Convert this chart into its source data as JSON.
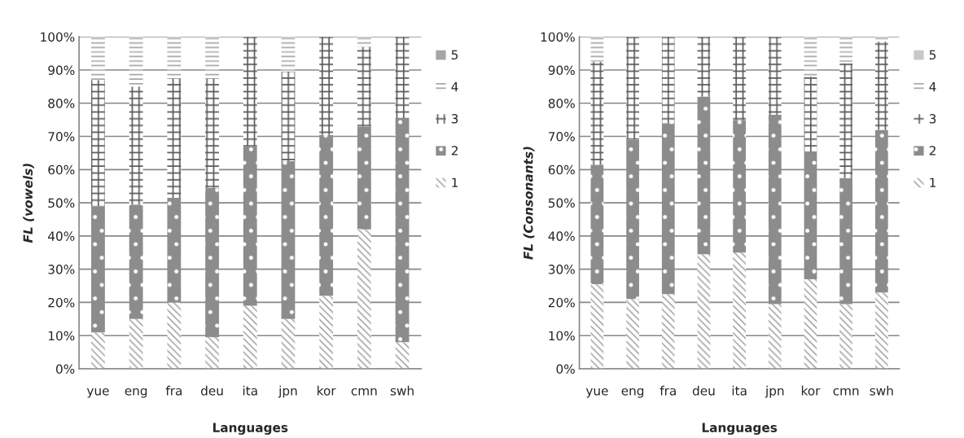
{
  "chart_data": [
    {
      "type": "bar",
      "stacked": true,
      "xlabel": "Languages",
      "ylabel": "FL (vowels)",
      "categories": [
        "yue",
        "eng",
        "fra",
        "deu",
        "ita",
        "jpn",
        "kor",
        "cmn",
        "swh"
      ],
      "series": [
        {
          "name": "1",
          "color": "#a6a6a6",
          "values": [
            11,
            15,
            20,
            9.5,
            19,
            15,
            22,
            42,
            8
          ]
        },
        {
          "name": "2",
          "color": "#8c8c8c",
          "values": [
            38,
            34.5,
            31.5,
            45,
            48,
            47.5,
            48.5,
            31,
            67.5
          ]
        },
        {
          "name": "3",
          "color": "#595959",
          "values": [
            38,
            35.5,
            36,
            33,
            33,
            27,
            29.5,
            24,
            24.5
          ]
        },
        {
          "name": "4",
          "color": "#a6a6a6",
          "values": [
            13,
            15,
            12.5,
            12.5,
            0,
            10.5,
            0,
            3,
            0
          ]
        },
        {
          "name": "5",
          "color": "#a6a6a6",
          "values": [
            0,
            0,
            0,
            0,
            0,
            0,
            0,
            0,
            0
          ]
        }
      ],
      "ylim": [
        0,
        100
      ],
      "yticks": [
        {
          "value": 0,
          "label": "0%"
        },
        {
          "value": 10,
          "label": "10%"
        },
        {
          "value": 20,
          "label": "20%"
        },
        {
          "value": 30,
          "label": "30%"
        },
        {
          "value": 40,
          "label": "40%"
        },
        {
          "value": 50,
          "label": "50%"
        },
        {
          "value": 60,
          "label": "60%"
        },
        {
          "value": 70,
          "label": "70%"
        },
        {
          "value": 80,
          "label": "80%"
        },
        {
          "value": 90,
          "label": "90%"
        },
        {
          "value": 100,
          "label": "100%"
        }
      ],
      "grid": "y",
      "legend": "right"
    },
    {
      "type": "bar",
      "stacked": true,
      "xlabel": "Languages",
      "ylabel": "FL (Consonants)",
      "categories": [
        "yue",
        "eng",
        "fra",
        "deu",
        "ita",
        "jpn",
        "kor",
        "cmn",
        "swh"
      ],
      "series": [
        {
          "name": "1",
          "color": "#a6a6a6",
          "values": [
            25.5,
            21,
            22.5,
            34.5,
            35,
            19.5,
            27,
            19.5,
            23
          ]
        },
        {
          "name": "2",
          "color": "#8c8c8c",
          "values": [
            36,
            48,
            51.5,
            47.5,
            40,
            57,
            38.5,
            38,
            49
          ]
        },
        {
          "name": "3",
          "color": "#595959",
          "values": [
            31,
            31,
            26,
            18,
            25,
            23.5,
            22.5,
            34.5,
            26.5
          ]
        },
        {
          "name": "4",
          "color": "#a6a6a6",
          "values": [
            7.5,
            0,
            0,
            0,
            0,
            0,
            12,
            8,
            1.5
          ]
        },
        {
          "name": "5",
          "color": "#c8c8c8",
          "values": [
            0,
            0,
            0,
            0,
            0,
            0,
            0,
            0,
            0
          ]
        }
      ],
      "ylim": [
        0,
        100
      ],
      "yticks": [
        {
          "value": 0,
          "label": "0%"
        },
        {
          "value": 10,
          "label": "10%"
        },
        {
          "value": 20,
          "label": "20%"
        },
        {
          "value": 30,
          "label": "30%"
        },
        {
          "value": 40,
          "label": "40%"
        },
        {
          "value": 50,
          "label": "50%"
        },
        {
          "value": 60,
          "label": "60%"
        },
        {
          "value": 70,
          "label": "70%"
        },
        {
          "value": 80,
          "label": "80%"
        },
        {
          "value": 90,
          "label": "90%"
        },
        {
          "value": 100,
          "label": "100%"
        }
      ],
      "grid": "y",
      "legend": "right"
    }
  ]
}
